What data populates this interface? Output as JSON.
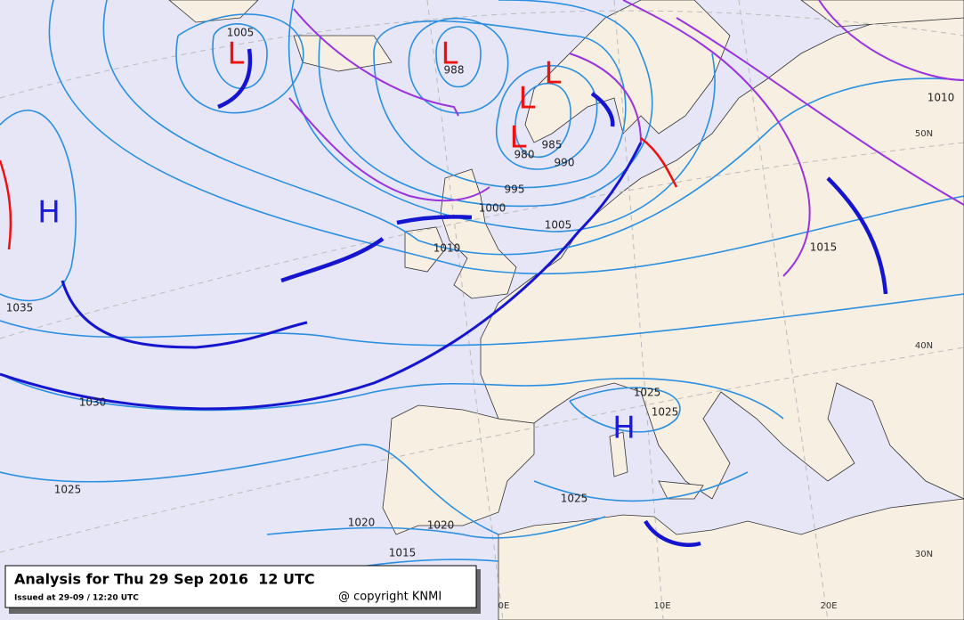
{
  "title": "Analysis for Thu 29 Sep 2016  12 UTC",
  "issued": "Issued at 29-09 / 12:20 UTC",
  "copyright": "@ copyright KNMI",
  "centers": [
    "H",
    "L",
    "L",
    "L",
    "L",
    "L",
    "H"
  ],
  "isobar_labels": [
    1005,
    988,
    985,
    980,
    990,
    995,
    1000,
    1005,
    1010,
    1015,
    1010,
    1035,
    1030,
    1025,
    1025,
    1025,
    1025,
    1020,
    1020,
    1015
  ],
  "grid_labels": [
    "50N",
    "40N",
    "30N",
    "0E",
    "10E",
    "20E"
  ]
}
